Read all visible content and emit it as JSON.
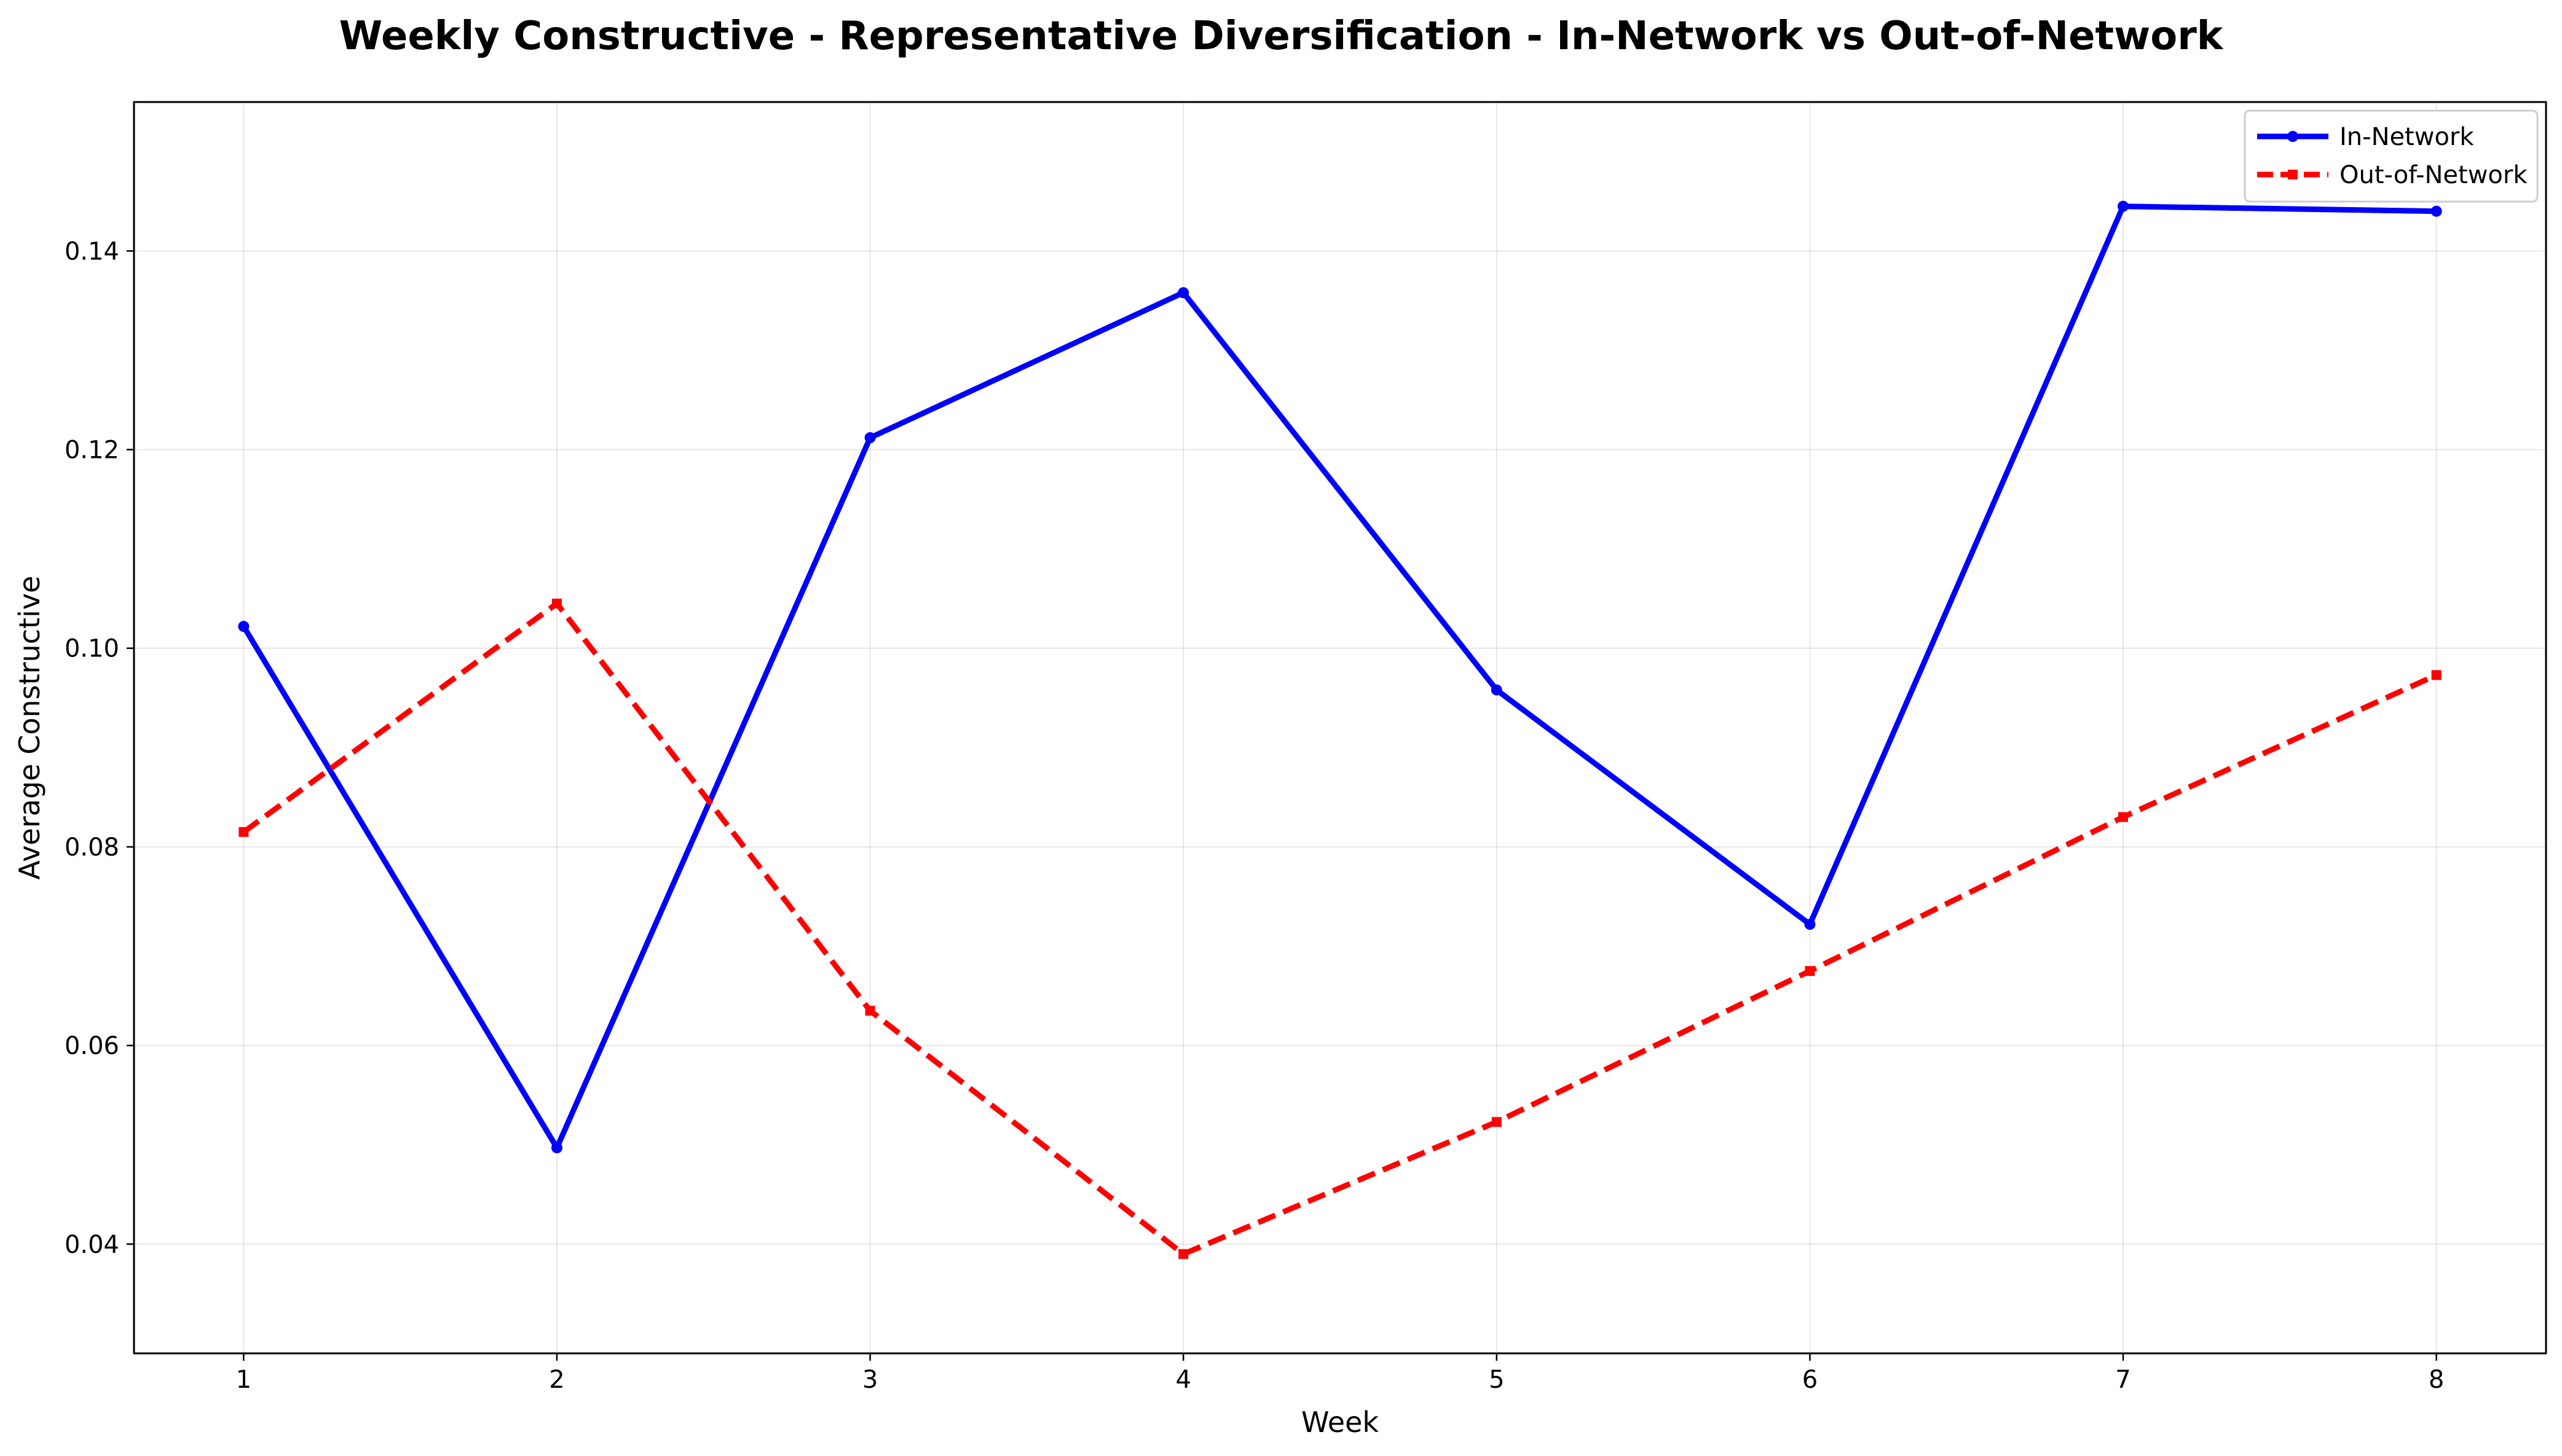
{
  "chart_data": {
    "type": "line",
    "title": "Weekly Constructive - Representative Diversification - In-Network vs Out-of-Network",
    "xlabel": "Week",
    "ylabel": "Average Constructive",
    "x": [
      1,
      2,
      3,
      4,
      5,
      6,
      7,
      8
    ],
    "x_ticks": [
      "1",
      "2",
      "3",
      "4",
      "5",
      "6",
      "7",
      "8"
    ],
    "y_ticks": [
      "0.04",
      "0.06",
      "0.08",
      "0.10",
      "0.12",
      "0.14"
    ],
    "xlim": [
      0.65,
      8.35
    ],
    "ylim": [
      0.029,
      0.155
    ],
    "grid": true,
    "legend_position": "top-right",
    "series": [
      {
        "name": "In-Network",
        "color": "#0000ff",
        "line_style": "solid",
        "marker": "circle",
        "values": [
          0.1022,
          0.0497,
          0.1212,
          0.1358,
          0.0958,
          0.0722,
          0.1445,
          0.144
        ]
      },
      {
        "name": "Out-of-Network",
        "color": "#ff0000",
        "line_style": "dashed",
        "marker": "square",
        "values": [
          0.0815,
          0.1045,
          0.0635,
          0.039,
          0.0523,
          0.0675,
          0.083,
          0.0973
        ]
      }
    ]
  }
}
